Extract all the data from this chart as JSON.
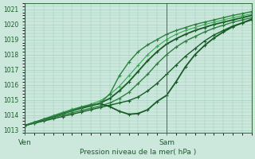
{
  "xlabel": "Pression niveau de la mer( hPa )",
  "background_color": "#cce8dc",
  "grid_color": "#99ccbb",
  "ylim": [
    1012.8,
    1021.4
  ],
  "yticks": [
    1013,
    1014,
    1015,
    1016,
    1017,
    1018,
    1019,
    1020,
    1021
  ],
  "xlim": [
    0,
    24
  ],
  "ven_x": 0,
  "sam_x": 15,
  "ven_label": "Ven",
  "sam_label": "Sam",
  "label_color": "#1a5c28",
  "tick_color": "#1a5c28",
  "axis_color": "#1a5c28",
  "vline_color": "#556655",
  "series": [
    {
      "x": [
        0,
        1,
        2,
        3,
        4,
        5,
        6,
        7,
        8,
        9,
        10,
        11,
        12,
        13,
        14,
        15,
        16,
        17,
        18,
        19,
        20,
        21,
        22,
        23,
        24
      ],
      "y": [
        1013.3,
        1013.45,
        1013.6,
        1013.75,
        1013.9,
        1014.05,
        1014.2,
        1014.35,
        1014.5,
        1014.65,
        1014.8,
        1014.95,
        1015.2,
        1015.6,
        1016.1,
        1016.7,
        1017.3,
        1017.9,
        1018.4,
        1018.9,
        1019.3,
        1019.6,
        1019.9,
        1020.1,
        1020.3
      ],
      "color": "#1a5c28",
      "lw": 1.0,
      "marker": "+"
    },
    {
      "x": [
        0,
        1,
        2,
        3,
        4,
        5,
        6,
        7,
        8,
        9,
        10,
        11,
        12,
        13,
        14,
        15,
        16,
        17,
        18,
        19,
        20,
        21,
        22,
        23,
        24
      ],
      "y": [
        1013.3,
        1013.48,
        1013.65,
        1013.82,
        1014.0,
        1014.15,
        1014.3,
        1014.45,
        1014.6,
        1014.8,
        1015.1,
        1015.5,
        1016.1,
        1016.7,
        1017.4,
        1018.0,
        1018.5,
        1018.9,
        1019.2,
        1019.5,
        1019.75,
        1019.95,
        1020.15,
        1020.3,
        1020.45
      ],
      "color": "#2d8040",
      "lw": 1.0,
      "marker": "+"
    },
    {
      "x": [
        0,
        1,
        2,
        3,
        4,
        5,
        6,
        7,
        8,
        9,
        10,
        11,
        12,
        13,
        14,
        15,
        16,
        17,
        18,
        19,
        20,
        21,
        22,
        23,
        24
      ],
      "y": [
        1013.3,
        1013.5,
        1013.7,
        1013.9,
        1014.1,
        1014.28,
        1014.45,
        1014.6,
        1014.8,
        1015.1,
        1015.6,
        1016.2,
        1016.9,
        1017.6,
        1018.2,
        1018.7,
        1019.05,
        1019.35,
        1019.6,
        1019.8,
        1020.0,
        1020.15,
        1020.3,
        1020.45,
        1020.6
      ],
      "color": "#1a5c28",
      "lw": 1.3,
      "marker": "+"
    },
    {
      "x": [
        0,
        1,
        2,
        3,
        4,
        5,
        6,
        7,
        8,
        9,
        10,
        11,
        12,
        13,
        14,
        15,
        16,
        17,
        18,
        19,
        20,
        21,
        22,
        23,
        24
      ],
      "y": [
        1013.3,
        1013.52,
        1013.74,
        1013.96,
        1014.18,
        1014.38,
        1014.55,
        1014.72,
        1014.95,
        1015.35,
        1015.9,
        1016.6,
        1017.3,
        1018.0,
        1018.55,
        1019.0,
        1019.35,
        1019.6,
        1019.8,
        1020.0,
        1020.15,
        1020.3,
        1020.45,
        1020.58,
        1020.7
      ],
      "color": "#3aaa50",
      "lw": 0.8,
      "marker": "+"
    },
    {
      "x": [
        0,
        1,
        2,
        3,
        4,
        5,
        6,
        7,
        8,
        9,
        10,
        11,
        12,
        13,
        14,
        15,
        16,
        17,
        18,
        19,
        20,
        21,
        22,
        23,
        24
      ],
      "y": [
        1013.3,
        1013.5,
        1013.7,
        1013.9,
        1014.1,
        1014.3,
        1014.5,
        1014.65,
        1014.75,
        1014.55,
        1014.25,
        1014.05,
        1014.1,
        1014.35,
        1014.9,
        1015.3,
        1016.2,
        1017.2,
        1018.0,
        1018.6,
        1019.1,
        1019.5,
        1019.85,
        1020.1,
        1020.35
      ],
      "color": "#1a5c28",
      "lw": 1.3,
      "marker": "+"
    },
    {
      "x": [
        0,
        1,
        2,
        3,
        4,
        5,
        6,
        7,
        8,
        9,
        10,
        11,
        12,
        13,
        14,
        15,
        16,
        17,
        18,
        19,
        20,
        21,
        22,
        23,
        24
      ],
      "y": [
        1013.3,
        1013.5,
        1013.7,
        1013.9,
        1014.1,
        1014.3,
        1014.5,
        1014.65,
        1014.8,
        1015.4,
        1016.6,
        1017.5,
        1018.2,
        1018.65,
        1019.0,
        1019.35,
        1019.6,
        1019.8,
        1020.0,
        1020.15,
        1020.3,
        1020.45,
        1020.6,
        1020.72,
        1020.85
      ],
      "color": "#2d8040",
      "lw": 1.0,
      "marker": "+"
    }
  ]
}
